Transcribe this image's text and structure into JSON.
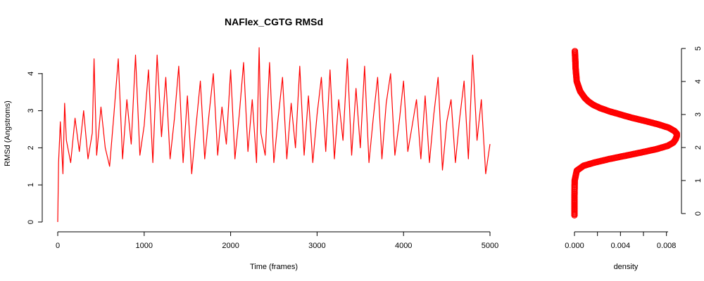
{
  "chart_data": [
    {
      "type": "line",
      "title": "NAFlex_CGTG RMSd",
      "xlabel": "Time (frames)",
      "ylabel": "RMSd (Angstroms)",
      "xlim": [
        0,
        5000
      ],
      "ylim": [
        0,
        4.8
      ],
      "x_ticks": [
        0,
        1000,
        2000,
        3000,
        4000,
        5000
      ],
      "x_tick_labels": [
        "0",
        "1000",
        "2000",
        "3000",
        "4000",
        "5000"
      ],
      "y_ticks": [
        0,
        1,
        2,
        3,
        4
      ],
      "y_tick_labels": [
        "0",
        "1",
        "2",
        "3",
        "4"
      ],
      "grid": false,
      "series": [
        {
          "color": "#ff0000",
          "x": [
            0,
            10,
            30,
            60,
            80,
            100,
            150,
            200,
            250,
            300,
            350,
            400,
            420,
            450,
            500,
            550,
            600,
            650,
            700,
            750,
            800,
            850,
            900,
            950,
            1000,
            1050,
            1100,
            1150,
            1200,
            1250,
            1300,
            1350,
            1400,
            1450,
            1500,
            1550,
            1600,
            1650,
            1700,
            1750,
            1800,
            1850,
            1900,
            1950,
            2000,
            2050,
            2100,
            2150,
            2200,
            2250,
            2300,
            2330,
            2350,
            2400,
            2450,
            2500,
            2550,
            2600,
            2650,
            2700,
            2750,
            2800,
            2850,
            2900,
            2950,
            3000,
            3050,
            3100,
            3150,
            3200,
            3250,
            3300,
            3350,
            3400,
            3450,
            3500,
            3550,
            3600,
            3650,
            3700,
            3750,
            3800,
            3850,
            3900,
            3950,
            4000,
            4050,
            4100,
            4150,
            4200,
            4250,
            4300,
            4350,
            4400,
            4450,
            4500,
            4550,
            4600,
            4650,
            4700,
            4750,
            4800,
            4850,
            4900,
            4950,
            5000
          ],
          "values": [
            0.0,
            1.6,
            2.7,
            1.3,
            3.2,
            2.2,
            1.6,
            2.8,
            1.9,
            3.0,
            1.7,
            2.4,
            4.4,
            1.8,
            3.1,
            2.0,
            1.5,
            2.9,
            4.4,
            1.7,
            3.3,
            2.1,
            4.5,
            1.8,
            2.6,
            4.1,
            1.6,
            4.5,
            2.3,
            3.9,
            1.7,
            2.8,
            4.2,
            1.6,
            3.4,
            1.3,
            2.6,
            3.8,
            1.7,
            2.9,
            4.0,
            1.8,
            3.1,
            2.1,
            4.1,
            1.7,
            2.9,
            4.3,
            1.9,
            3.3,
            1.6,
            4.7,
            2.4,
            1.8,
            4.3,
            1.6,
            2.8,
            3.9,
            1.7,
            3.2,
            2.0,
            4.2,
            1.8,
            3.4,
            1.6,
            2.9,
            3.9,
            1.9,
            4.1,
            1.7,
            3.3,
            2.2,
            4.4,
            1.8,
            3.6,
            2.0,
            4.2,
            1.6,
            2.8,
            3.9,
            1.7,
            3.2,
            4.0,
            1.8,
            2.7,
            3.8,
            1.9,
            2.6,
            3.3,
            1.7,
            3.4,
            1.6,
            2.9,
            3.9,
            1.4,
            2.7,
            3.3,
            1.6,
            2.8,
            3.8,
            1.7,
            4.5,
            2.2,
            3.3,
            1.3,
            2.1
          ]
        }
      ]
    },
    {
      "type": "line",
      "xlabel": "density",
      "ylabel": "",
      "xlim": [
        0,
        0.009
      ],
      "ylim": [
        0,
        5
      ],
      "x_ticks": [
        0.0,
        0.004,
        0.008
      ],
      "x_tick_labels": [
        "0.000",
        "0.004",
        "0.008"
      ],
      "x_minor_ticks": [
        0.002,
        0.006
      ],
      "y_ticks": [
        0,
        1,
        2,
        3,
        4,
        5
      ],
      "y_tick_labels": [
        "0",
        "1",
        "2",
        "3",
        "4",
        "5"
      ],
      "y_axis_side": "right",
      "grid": false,
      "series": [
        {
          "color": "#ff0000",
          "marker": "circle",
          "y": [
            -0.05,
            0.5,
            1.0,
            1.3,
            1.45,
            1.55,
            1.65,
            1.75,
            1.85,
            1.95,
            2.05,
            2.15,
            2.25,
            2.35,
            2.42,
            2.5,
            2.6,
            2.7,
            2.8,
            2.9,
            3.0,
            3.1,
            3.2,
            3.3,
            3.4,
            3.5,
            3.6,
            3.7,
            3.8,
            3.9,
            4.0,
            4.2,
            4.4,
            4.6,
            4.8,
            4.95
          ],
          "values": [
            0.0,
            0.0,
            2e-05,
            0.0002,
            0.0008,
            0.0018,
            0.003,
            0.0044,
            0.0058,
            0.0071,
            0.0081,
            0.0086,
            0.0088,
            0.0089,
            0.0089,
            0.0087,
            0.0082,
            0.0073,
            0.0062,
            0.005,
            0.004,
            0.003,
            0.0022,
            0.0016,
            0.0012,
            0.0009,
            0.0007,
            0.0005,
            0.0004,
            0.0003,
            0.0002,
            0.00015,
            0.0001,
            8e-05,
            5e-05,
            3e-05
          ]
        }
      ]
    }
  ]
}
